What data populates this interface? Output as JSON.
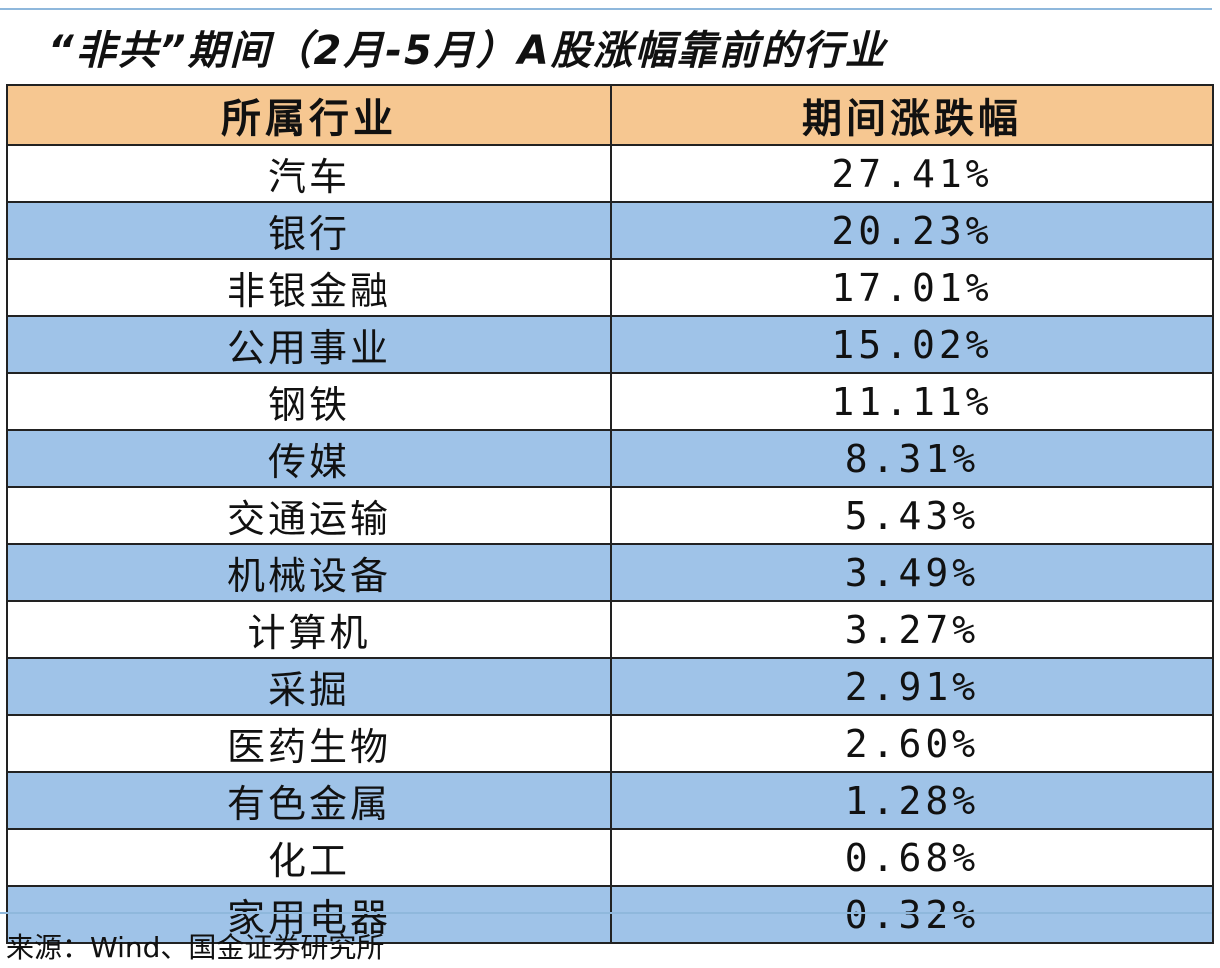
{
  "title": "“非共”期间（2月-5月）A股涨幅靠前的行业",
  "table": {
    "headers": [
      "所属行业",
      "期间涨跌幅"
    ],
    "rows": [
      {
        "industry": "汽车",
        "change": "27.41%"
      },
      {
        "industry": "银行",
        "change": "20.23%"
      },
      {
        "industry": "非银金融",
        "change": "17.01%"
      },
      {
        "industry": "公用事业",
        "change": "15.02%"
      },
      {
        "industry": "钢铁",
        "change": "11.11%"
      },
      {
        "industry": "传媒",
        "change": "8.31%"
      },
      {
        "industry": "交通运输",
        "change": "5.43%"
      },
      {
        "industry": "机械设备",
        "change": "3.49%"
      },
      {
        "industry": "计算机",
        "change": "3.27%"
      },
      {
        "industry": "采掘",
        "change": "2.91%"
      },
      {
        "industry": "医药生物",
        "change": "2.60%"
      },
      {
        "industry": "有色金属",
        "change": "1.28%"
      },
      {
        "industry": "化工",
        "change": "0.68%"
      },
      {
        "industry": "家用电器",
        "change": "0.32%"
      }
    ]
  },
  "source": "来源：Wind、国金证券研究所",
  "colors": {
    "header_bg": "#f6c791",
    "alt_row_bg": "#9fc3e8",
    "rule": "#8fb8dc"
  }
}
